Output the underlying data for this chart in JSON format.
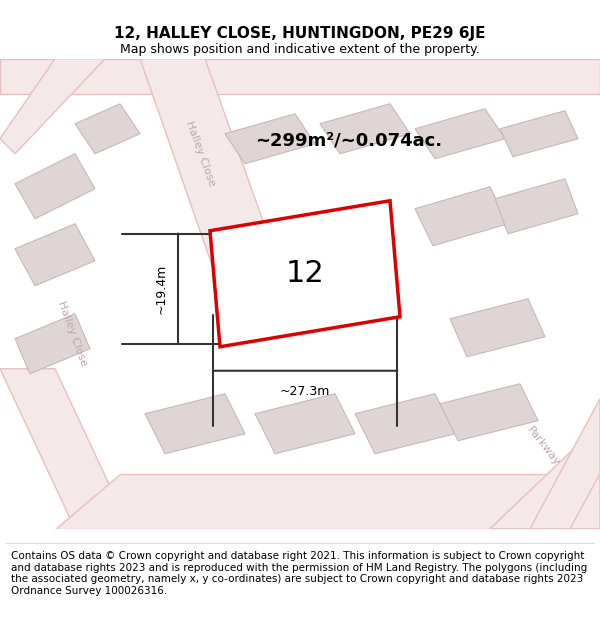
{
  "title": "12, HALLEY CLOSE, HUNTINGDON, PE29 6JE",
  "subtitle": "Map shows position and indicative extent of the property.",
  "footer": "Contains OS data © Crown copyright and database right 2021. This information is subject to Crown copyright and database rights 2023 and is reproduced with the permission of HM Land Registry. The polygons (including the associated geometry, namely x, y co-ordinates) are subject to Crown copyright and database rights 2023 Ordnance Survey 100026316.",
  "area_label": "~299m²/~0.074ac.",
  "width_label": "~27.3m",
  "height_label": "~19.4m",
  "property_number": "12",
  "map_bg_color": "#f2ecec",
  "road_ec": "#e8c0c0",
  "road_fc": "#f5e8e8",
  "bld_ec": "#c8b8b8",
  "bld_fc": "#e0d5d5",
  "red_color": "#dd0000",
  "dim_line_color": "#333333",
  "title_fontsize": 11,
  "subtitle_fontsize": 9,
  "footer_fontsize": 7.5,
  "road_label_color": "#bbaaaa",
  "figsize": [
    6.0,
    6.25
  ],
  "dpi": 100
}
